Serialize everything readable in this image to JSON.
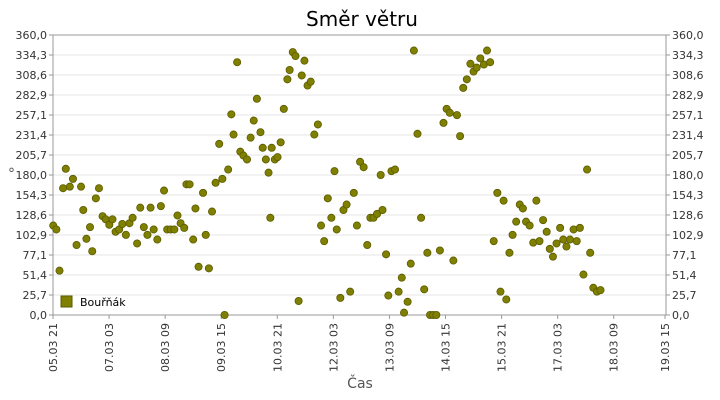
{
  "chart_data": {
    "type": "scatter",
    "title": "Směr větru",
    "xlabel": "Čas",
    "ylabel": "°",
    "ylim": [
      0,
      360
    ],
    "y_ticks": [
      "0,0",
      "25,7",
      "51,4",
      "77,1",
      "102,9",
      "128,6",
      "154,3",
      "180,0",
      "205,7",
      "231,4",
      "257,1",
      "282,9",
      "308,6",
      "334,3",
      "360,0"
    ],
    "x_ticks": [
      "05.03 21",
      "07.03 03",
      "08.03 09",
      "09.03 15",
      "10.03 21",
      "12.03 03",
      "13.03 09",
      "14.03 15",
      "15.03 21",
      "17.03 03",
      "18.03 09",
      "19.03 15"
    ],
    "x_range_days": [
      5.875,
      19.54
    ],
    "x_tick_days": [
      5.875,
      7.125,
      8.375,
      9.625,
      10.875,
      12.125,
      13.375,
      14.625,
      15.875,
      17.125,
      18.375,
      19.625
    ],
    "legend": "bottom-left",
    "marker_color": "#808000",
    "grid": true,
    "series": [
      {
        "name": "Bouřňák",
        "points": [
          [
            5.88,
            115
          ],
          [
            5.95,
            110
          ],
          [
            6.02,
            57
          ],
          [
            6.1,
            163
          ],
          [
            6.16,
            188
          ],
          [
            6.25,
            165
          ],
          [
            6.32,
            175
          ],
          [
            6.4,
            90
          ],
          [
            6.5,
            165
          ],
          [
            6.55,
            135
          ],
          [
            6.62,
            98
          ],
          [
            6.7,
            113
          ],
          [
            6.75,
            82
          ],
          [
            6.83,
            150
          ],
          [
            6.9,
            163
          ],
          [
            6.98,
            127
          ],
          [
            7.05,
            123
          ],
          [
            7.13,
            116
          ],
          [
            7.2,
            123
          ],
          [
            7.27,
            107
          ],
          [
            7.35,
            110
          ],
          [
            7.42,
            117
          ],
          [
            7.5,
            103
          ],
          [
            7.58,
            118
          ],
          [
            7.65,
            125
          ],
          [
            7.75,
            92
          ],
          [
            7.82,
            138
          ],
          [
            7.9,
            113
          ],
          [
            7.98,
            103
          ],
          [
            8.05,
            138
          ],
          [
            8.12,
            110
          ],
          [
            8.2,
            97
          ],
          [
            8.28,
            140
          ],
          [
            8.35,
            160
          ],
          [
            8.42,
            110
          ],
          [
            8.5,
            110
          ],
          [
            8.58,
            110
          ],
          [
            8.65,
            128
          ],
          [
            8.72,
            118
          ],
          [
            8.8,
            112
          ],
          [
            8.85,
            168
          ],
          [
            8.92,
            168
          ],
          [
            9.0,
            97
          ],
          [
            9.05,
            137
          ],
          [
            9.12,
            62
          ],
          [
            9.22,
            157
          ],
          [
            9.28,
            103
          ],
          [
            9.35,
            60
          ],
          [
            9.42,
            133
          ],
          [
            9.5,
            170
          ],
          [
            9.58,
            220
          ],
          [
            9.65,
            175
          ],
          [
            9.7,
            0
          ],
          [
            9.78,
            187
          ],
          [
            9.85,
            258
          ],
          [
            9.9,
            232
          ],
          [
            9.98,
            325
          ],
          [
            10.05,
            210
          ],
          [
            10.12,
            205
          ],
          [
            10.2,
            200
          ],
          [
            10.28,
            228
          ],
          [
            10.35,
            250
          ],
          [
            10.42,
            278
          ],
          [
            10.5,
            235
          ],
          [
            10.55,
            215
          ],
          [
            10.62,
            200
          ],
          [
            10.68,
            183
          ],
          [
            10.75,
            215
          ],
          [
            10.72,
            125
          ],
          [
            10.82,
            200
          ],
          [
            10.88,
            203
          ],
          [
            10.95,
            222
          ],
          [
            11.02,
            265
          ],
          [
            11.1,
            303
          ],
          [
            11.15,
            315
          ],
          [
            11.22,
            338
          ],
          [
            11.28,
            333
          ],
          [
            11.35,
            18
          ],
          [
            11.42,
            308
          ],
          [
            11.48,
            327
          ],
          [
            11.55,
            295
          ],
          [
            11.62,
            300
          ],
          [
            11.7,
            232
          ],
          [
            11.78,
            245
          ],
          [
            11.85,
            115
          ],
          [
            11.92,
            95
          ],
          [
            12.0,
            150
          ],
          [
            12.08,
            125
          ],
          [
            12.15,
            185
          ],
          [
            12.2,
            110
          ],
          [
            12.28,
            22
          ],
          [
            12.35,
            135
          ],
          [
            12.42,
            142
          ],
          [
            12.5,
            30
          ],
          [
            12.58,
            157
          ],
          [
            12.65,
            115
          ],
          [
            12.72,
            197
          ],
          [
            12.8,
            190
          ],
          [
            12.88,
            90
          ],
          [
            12.95,
            125
          ],
          [
            13.02,
            125
          ],
          [
            13.1,
            130
          ],
          [
            13.18,
            180
          ],
          [
            13.22,
            135
          ],
          [
            13.3,
            78
          ],
          [
            13.35,
            25
          ],
          [
            13.42,
            185
          ],
          [
            13.5,
            187
          ],
          [
            13.58,
            30
          ],
          [
            13.65,
            48
          ],
          [
            13.7,
            3
          ],
          [
            13.78,
            17
          ],
          [
            13.85,
            66
          ],
          [
            13.92,
            340
          ],
          [
            14.0,
            233
          ],
          [
            14.08,
            125
          ],
          [
            14.15,
            33
          ],
          [
            14.22,
            80
          ],
          [
            14.28,
            0
          ],
          [
            14.35,
            0
          ],
          [
            14.42,
            0
          ],
          [
            14.5,
            83
          ],
          [
            14.58,
            247
          ],
          [
            14.65,
            265
          ],
          [
            14.72,
            260
          ],
          [
            14.8,
            70
          ],
          [
            14.88,
            257
          ],
          [
            14.95,
            230
          ],
          [
            15.02,
            292
          ],
          [
            15.1,
            303
          ],
          [
            15.18,
            323
          ],
          [
            15.25,
            313
          ],
          [
            15.32,
            318
          ],
          [
            15.4,
            330
          ],
          [
            15.48,
            322
          ],
          [
            15.55,
            340
          ],
          [
            15.62,
            325
          ],
          [
            15.7,
            95
          ],
          [
            15.78,
            157
          ],
          [
            15.85,
            30
          ],
          [
            15.92,
            147
          ],
          [
            15.98,
            20
          ],
          [
            16.05,
            80
          ],
          [
            16.12,
            103
          ],
          [
            16.2,
            120
          ],
          [
            16.28,
            142
          ],
          [
            16.35,
            137
          ],
          [
            16.42,
            120
          ],
          [
            16.5,
            115
          ],
          [
            16.58,
            93
          ],
          [
            16.65,
            147
          ],
          [
            16.72,
            95
          ],
          [
            16.8,
            122
          ],
          [
            16.88,
            107
          ],
          [
            16.95,
            85
          ],
          [
            17.02,
            75
          ],
          [
            17.1,
            92
          ],
          [
            17.18,
            112
          ],
          [
            17.25,
            97
          ],
          [
            17.32,
            88
          ],
          [
            17.4,
            97
          ],
          [
            17.48,
            110
          ],
          [
            17.55,
            95
          ],
          [
            17.62,
            112
          ],
          [
            17.7,
            52
          ],
          [
            17.78,
            187
          ],
          [
            17.85,
            80
          ],
          [
            17.92,
            35
          ],
          [
            18.0,
            30
          ],
          [
            18.08,
            32
          ]
        ]
      }
    ]
  }
}
